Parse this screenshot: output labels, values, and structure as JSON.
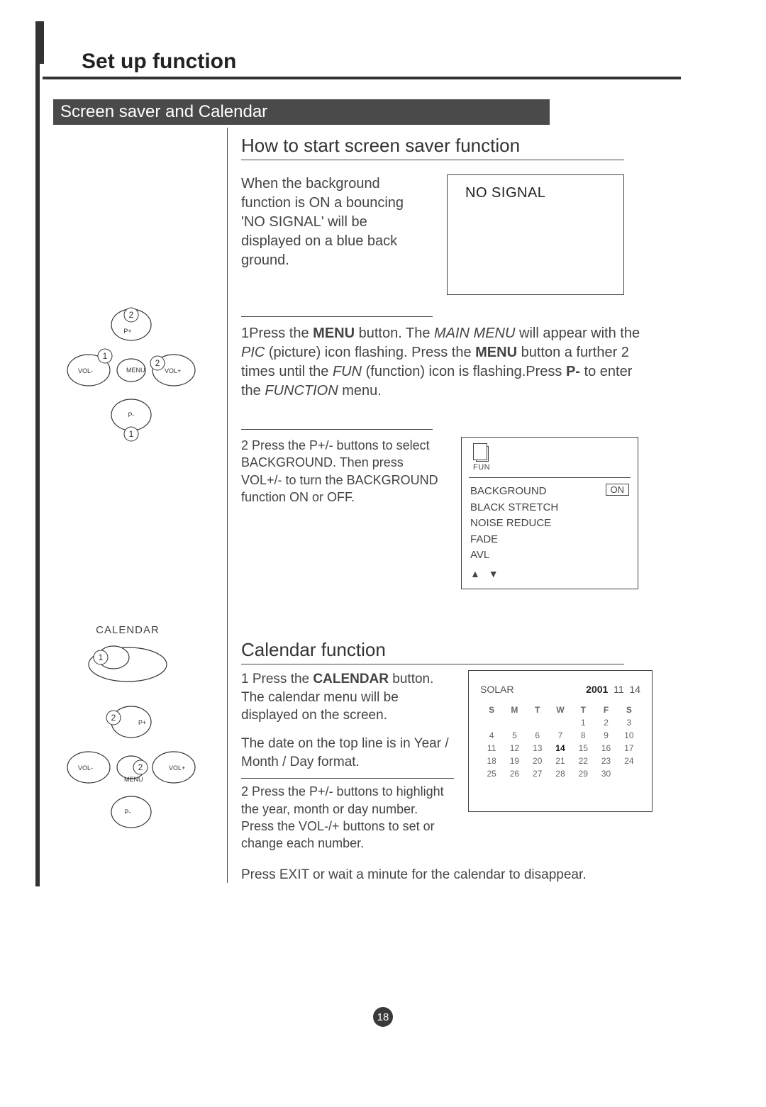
{
  "page": {
    "title": "Set up function",
    "section": "Screen saver and Calendar",
    "page_number": "18"
  },
  "screensaver": {
    "heading": "How to start screen saver function",
    "intro": "When the background function is ON a bouncing 'NO SIGNAL' will be displayed on a blue back ground.",
    "nosignal_label": "NO SIGNAL",
    "step1_pre": "1Press the ",
    "step1_b1": "MENU",
    "step1_mid1": " button. The ",
    "step1_i1": "MAIN MENU",
    "step1_mid2": " will appear with the ",
    "step1_i2": "PIC",
    "step1_mid3": " (picture) icon flashing. Press the ",
    "step1_b2": "MENU",
    "step1_mid4": " button a further 2 times until the ",
    "step1_i3": "FUN",
    "step1_mid5": " (function) icon is flashing.Press ",
    "step1_b3": "P-",
    "step1_mid6": " to enter the ",
    "step1_i4": "FUNCTION",
    "step1_end": " menu.",
    "step2": "2 Press the P+/- buttons to select BACKGROUND. Then press VOL+/- to turn the BACKGROUND function ON or OFF.",
    "fun_menu": {
      "icon_label": "FUN",
      "items": [
        "BACKGROUND",
        "BLACK STRETCH",
        "NOISE REDUCE",
        "FADE",
        "AVL"
      ],
      "value": "ON",
      "arrows": "▲  ▼"
    }
  },
  "remote1": {
    "vol_minus": "VOL-",
    "vol_plus": "VOL+",
    "p_minus": "P-",
    "p_plus": "P+",
    "menu": "MENU",
    "n1": "1",
    "n2": "2"
  },
  "calendar": {
    "label": "CALENDAR",
    "heading": "Calendar function",
    "step1_pre": "1 Press the ",
    "step1_b": "CALENDAR",
    "step1_post": " button. The calendar menu will be displayed on the screen.",
    "date_format": "The date on the top line is in Year / Month / Day format.",
    "step2": "2 Press the P+/- buttons to highlight the year, month or day number. Press the VOL-/+  buttons  to set or change each number.",
    "exit": "Press EXIT or wait a minute for the calendar to disappear.",
    "display": {
      "solar": "SOLAR",
      "year": "2001",
      "month": "11",
      "day": "14",
      "dow": [
        "S",
        "M",
        "T",
        "W",
        "T",
        "F",
        "S"
      ],
      "rows": [
        [
          "",
          "",
          "",
          "",
          "1",
          "2",
          "3"
        ],
        [
          "4",
          "5",
          "6",
          "7",
          "8",
          "9",
          "10"
        ],
        [
          "11",
          "12",
          "13",
          "14",
          "15",
          "16",
          "17"
        ],
        [
          "18",
          "19",
          "20",
          "21",
          "22",
          "23",
          "24"
        ],
        [
          "25",
          "26",
          "27",
          "28",
          "29",
          "30",
          ""
        ]
      ],
      "highlight": "14"
    }
  },
  "remote2": {
    "vol_minus": "VOL-",
    "vol_plus": "VOL+",
    "p_minus": "P-",
    "p_plus": "P+",
    "menu": "MENU",
    "n2": "2"
  },
  "colors": {
    "ink": "#333333",
    "bar": "#4a4a4a",
    "text": "#444444"
  }
}
